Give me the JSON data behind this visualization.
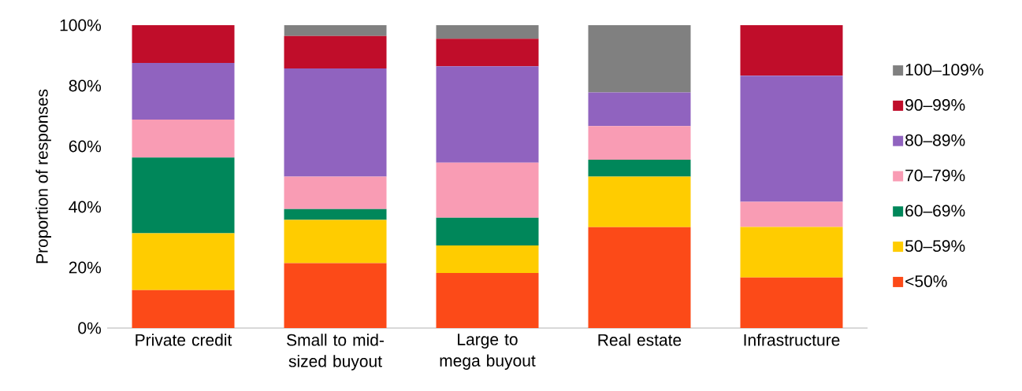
{
  "chart_data": {
    "type": "bar",
    "stacked": true,
    "ylabel": "Proportion of responses",
    "categories": [
      "Private credit",
      "Small to mid-sized buyout",
      "Large to mega buyout",
      "Real estate",
      "Infrastructure"
    ],
    "series": [
      {
        "name": "<50%",
        "color": "#fc4a18",
        "values": [
          12.5,
          21.4,
          18.2,
          33.3,
          16.7
        ]
      },
      {
        "name": "50–59%",
        "color": "#ffcc00",
        "values": [
          18.8,
          14.3,
          9.1,
          16.7,
          16.7
        ]
      },
      {
        "name": "60–69%",
        "color": "#00875a",
        "values": [
          25.0,
          3.6,
          9.1,
          5.6,
          0
        ]
      },
      {
        "name": "70–79%",
        "color": "#f99cb4",
        "values": [
          12.5,
          10.7,
          18.2,
          11.1,
          8.3
        ]
      },
      {
        "name": "80–89%",
        "color": "#9063bf",
        "values": [
          18.7,
          35.7,
          31.8,
          11.1,
          41.6
        ]
      },
      {
        "name": "90–99%",
        "color": "#c00d2a",
        "values": [
          12.5,
          10.7,
          9.1,
          0,
          16.7
        ]
      },
      {
        "name": "100–109%",
        "color": "#808080",
        "values": [
          0,
          3.6,
          4.5,
          22.2,
          0
        ]
      }
    ],
    "ylim": [
      0,
      100
    ],
    "yticks": [
      {
        "value": 0,
        "label": "0%"
      },
      {
        "value": 20,
        "label": "20%"
      },
      {
        "value": 40,
        "label": "40%"
      },
      {
        "value": 60,
        "label": "60%"
      },
      {
        "value": 80,
        "label": "80%"
      },
      {
        "value": 100,
        "label": "100%"
      }
    ],
    "legend": "right",
    "grid": false
  }
}
